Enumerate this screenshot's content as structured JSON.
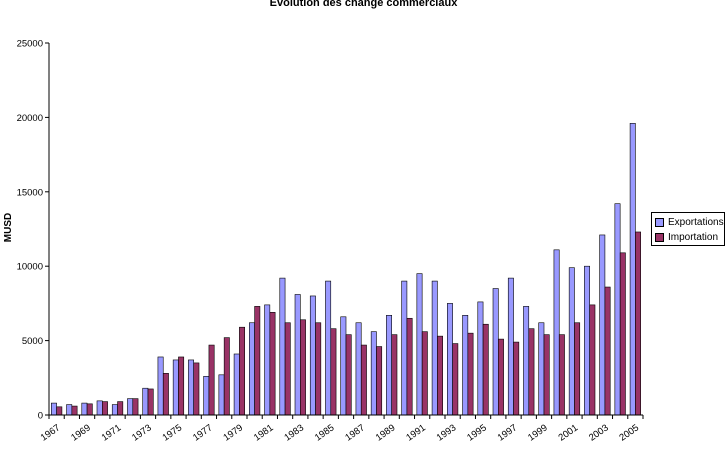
{
  "chart_data": {
    "type": "bar",
    "title": "Evolution des   change commerciaux",
    "ylabel": "MUSD",
    "ylim": [
      0,
      25000
    ],
    "yticks": [
      0,
      5000,
      10000,
      15000,
      20000,
      25000
    ],
    "grid": false,
    "legend_position": "right",
    "categories": [
      "1967",
      "1968",
      "1969",
      "1970",
      "1971",
      "1972",
      "1973",
      "1974",
      "1975",
      "1976",
      "1977",
      "1978",
      "1979",
      "1980",
      "1981",
      "1982",
      "1983",
      "1984",
      "1985",
      "1986",
      "1987",
      "1988",
      "1989",
      "1990",
      "1991",
      "1992",
      "1993",
      "1994",
      "1995",
      "1996",
      "1997",
      "1998",
      "1999",
      "2000",
      "2001",
      "2002",
      "2003",
      "2004",
      "2005"
    ],
    "tick_labels": [
      "1967",
      "",
      "1969",
      "",
      "1971",
      "",
      "1973",
      "",
      "1975",
      "",
      "1977",
      "",
      "1979",
      "",
      "1981",
      "",
      "1983",
      "",
      "1985",
      "",
      "1987",
      "",
      "1989",
      "",
      "1991",
      "",
      "1993",
      "",
      "1995",
      "",
      "1997",
      "",
      "1999",
      "",
      "2001",
      "",
      "2003",
      "",
      "2005"
    ],
    "series": [
      {
        "name": "Exportations",
        "color": "#9999ff",
        "values": [
          800,
          700,
          800,
          950,
          700,
          1100,
          1800,
          3900,
          3700,
          3700,
          2600,
          2700,
          4100,
          6200,
          7400,
          9200,
          8100,
          8000,
          9000,
          6600,
          6200,
          5600,
          6700,
          9000,
          9500,
          9000,
          7500,
          6700,
          7600,
          8500,
          9200,
          7300,
          6200,
          11100,
          9900,
          10000,
          12100,
          14200,
          19600
        ]
      },
      {
        "name": "Importation",
        "color": "#993366",
        "values": [
          550,
          600,
          750,
          900,
          900,
          1100,
          1750,
          2800,
          3900,
          3500,
          4700,
          5200,
          5900,
          7300,
          6900,
          6200,
          6400,
          6200,
          5800,
          5400,
          4700,
          4600,
          5400,
          6500,
          5600,
          5300,
          4800,
          5500,
          6100,
          5100,
          4900,
          5800,
          5400,
          5400,
          6200,
          7400,
          8600,
          10900,
          12300
        ]
      }
    ]
  }
}
